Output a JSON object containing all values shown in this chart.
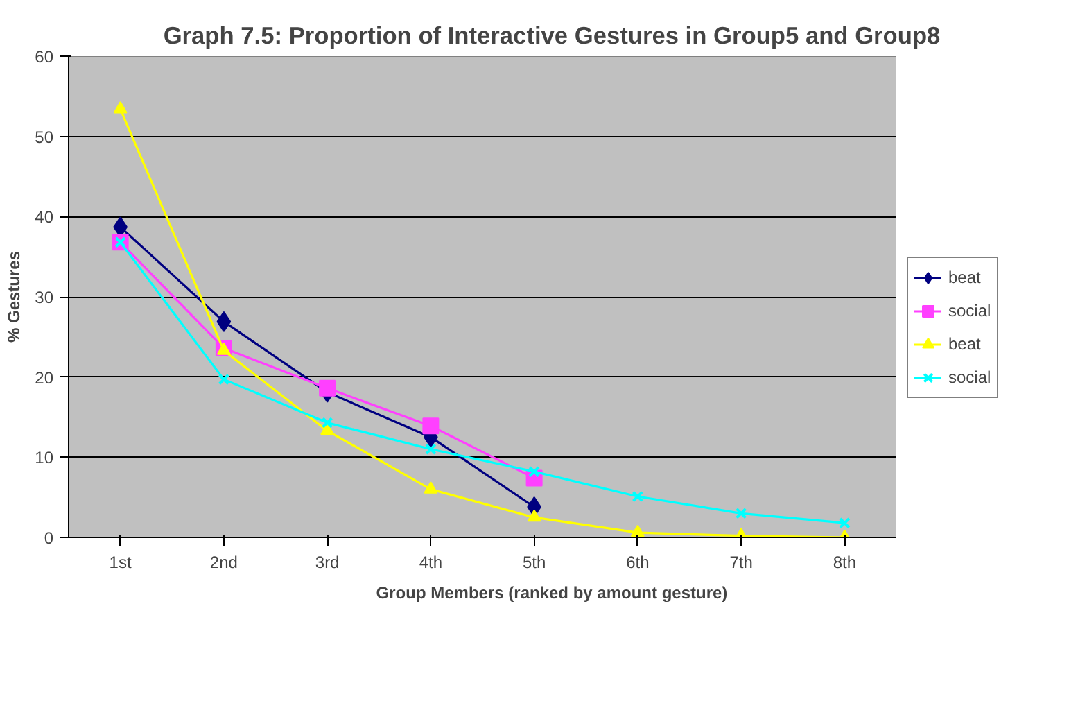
{
  "chart_data": {
    "type": "line",
    "title": "Graph 7.5: Proportion of Interactive Gestures in Group5 and Group8",
    "xlabel": "Group Members (ranked by amount gesture)",
    "ylabel": "% Gestures",
    "categories": [
      "1st",
      "2nd",
      "3rd",
      "4th",
      "5th",
      "6th",
      "7th",
      "8th"
    ],
    "ylim": [
      0,
      60
    ],
    "yticks": [
      0,
      10,
      20,
      30,
      40,
      50,
      60
    ],
    "grid": "y",
    "legend": "right",
    "line_style": "solid",
    "series": [
      {
        "name": "beat",
        "color": "#000080",
        "marker": "diamond",
        "values": [
          38.7,
          26.9,
          18.1,
          12.5,
          3.8,
          null,
          null,
          null
        ]
      },
      {
        "name": "social",
        "color": "#ff40ff",
        "marker": "square",
        "values": [
          36.8,
          23.6,
          18.6,
          13.9,
          7.4,
          null,
          null,
          null
        ]
      },
      {
        "name": "beat",
        "color": "#ffff00",
        "marker": "triangle",
        "values": [
          53.4,
          23.3,
          13.3,
          6.0,
          2.5,
          0.6,
          0.2,
          0
        ]
      },
      {
        "name": "social",
        "color": "#00ffff",
        "marker": "cross",
        "values": [
          36.8,
          19.7,
          14.3,
          11.0,
          8.2,
          5.1,
          3.0,
          1.8
        ]
      }
    ]
  }
}
